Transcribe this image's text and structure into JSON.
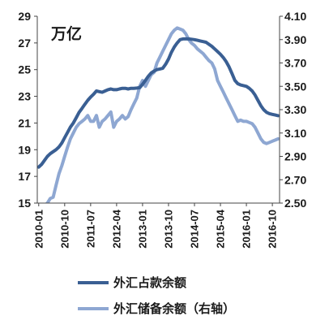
{
  "chart_data": {
    "type": "line",
    "unit_label": "万亿",
    "x_ticks": [
      "2010-01",
      "2010-10",
      "2011-07",
      "2012-04",
      "2013-01",
      "2013-10",
      "2014-07",
      "2015-04",
      "2016-01",
      "2016-10"
    ],
    "x_start": "2010-01",
    "y_left": {
      "range": [
        15,
        29
      ],
      "ticks": [
        "15",
        "17",
        "19",
        "21",
        "23",
        "25",
        "27",
        "29"
      ]
    },
    "y_right": {
      "range": [
        2.5,
        4.1
      ],
      "ticks": [
        "2.50",
        "2.70",
        "2.90",
        "3.10",
        "3.30",
        "3.50",
        "3.70",
        "3.90",
        "4.10"
      ]
    },
    "grid": false,
    "legend_position": "bottom",
    "series": [
      {
        "name": "外汇占款余额",
        "axis": "left",
        "color": "#3a5f93",
        "values": [
          17.7,
          17.9,
          18.2,
          18.5,
          18.7,
          18.85,
          19.0,
          19.2,
          19.5,
          19.9,
          20.3,
          20.7,
          21.0,
          21.4,
          21.8,
          22.1,
          22.4,
          22.7,
          22.95,
          23.15,
          23.4,
          23.35,
          23.3,
          23.4,
          23.5,
          23.55,
          23.5,
          23.5,
          23.55,
          23.6,
          23.6,
          23.55,
          23.6,
          23.6,
          23.62,
          23.65,
          23.9,
          24.2,
          24.5,
          24.75,
          24.9,
          25.0,
          25.05,
          25.1,
          25.4,
          25.8,
          26.3,
          26.7,
          27.0,
          27.25,
          27.3,
          27.3,
          27.3,
          27.28,
          27.25,
          27.2,
          27.15,
          27.1,
          27.05,
          26.9,
          26.75,
          26.55,
          26.35,
          26.15,
          25.9,
          25.6,
          25.2,
          24.7,
          24.2,
          23.95,
          23.85,
          23.8,
          23.75,
          23.6,
          23.4,
          23.1,
          22.7,
          22.3,
          22.0,
          21.8,
          21.7,
          21.65,
          21.6,
          21.55
        ]
      },
      {
        "name": "外汇储备余额（右轴）",
        "axis": "right",
        "color": "#8ea7d2",
        "values": [
          2.42,
          2.45,
          2.48,
          2.5,
          2.54,
          2.55,
          2.65,
          2.75,
          2.82,
          2.9,
          2.98,
          3.05,
          3.1,
          3.15,
          3.18,
          3.2,
          3.22,
          3.25,
          3.2,
          3.2,
          3.25,
          3.15,
          3.2,
          3.22,
          3.25,
          3.28,
          3.15,
          3.2,
          3.22,
          3.25,
          3.22,
          3.24,
          3.3,
          3.35,
          3.4,
          3.5,
          3.55,
          3.5,
          3.55,
          3.6,
          3.62,
          3.7,
          3.75,
          3.8,
          3.85,
          3.9,
          3.95,
          3.98,
          4.0,
          3.99,
          3.98,
          3.95,
          3.9,
          3.87,
          3.85,
          3.82,
          3.8,
          3.78,
          3.75,
          3.72,
          3.7,
          3.65,
          3.55,
          3.5,
          3.45,
          3.4,
          3.35,
          3.3,
          3.25,
          3.2,
          3.21,
          3.2,
          3.2,
          3.19,
          3.18,
          3.15,
          3.1,
          3.05,
          3.02,
          3.01,
          3.02,
          3.03,
          3.04,
          3.05
        ]
      }
    ]
  }
}
